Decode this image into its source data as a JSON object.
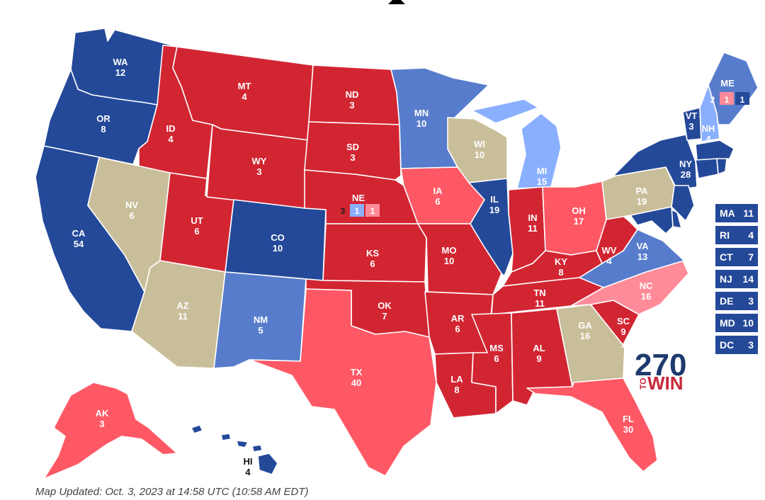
{
  "colors": {
    "safe_dem": "#244999",
    "likely_dem": "#577CCC",
    "lean_dem": "#8AAFFF",
    "tossup": "#C9BE9A",
    "lean_rep": "#FF8B98",
    "likely_rep": "#FF5865",
    "safe_rep": "#D22532"
  },
  "states": {
    "WA": {
      "abbr": "WA",
      "ev": "12",
      "rating": "safe_dem"
    },
    "OR": {
      "abbr": "OR",
      "ev": "8",
      "rating": "safe_dem"
    },
    "CA": {
      "abbr": "CA",
      "ev": "54",
      "rating": "safe_dem"
    },
    "ID": {
      "abbr": "ID",
      "ev": "4",
      "rating": "safe_rep"
    },
    "NV": {
      "abbr": "NV",
      "ev": "6",
      "rating": "tossup"
    },
    "AZ": {
      "abbr": "AZ",
      "ev": "11",
      "rating": "tossup"
    },
    "UT": {
      "abbr": "UT",
      "ev": "6",
      "rating": "safe_rep"
    },
    "MT": {
      "abbr": "MT",
      "ev": "4",
      "rating": "safe_rep"
    },
    "WY": {
      "abbr": "WY",
      "ev": "3",
      "rating": "safe_rep"
    },
    "CO": {
      "abbr": "CO",
      "ev": "10",
      "rating": "safe_dem"
    },
    "NM": {
      "abbr": "NM",
      "ev": "5",
      "rating": "likely_dem"
    },
    "ND": {
      "abbr": "ND",
      "ev": "3",
      "rating": "safe_rep"
    },
    "SD": {
      "abbr": "SD",
      "ev": "3",
      "rating": "safe_rep"
    },
    "NE": {
      "abbr": "NE",
      "ev": "3",
      "rating": "safe_rep"
    },
    "KS": {
      "abbr": "KS",
      "ev": "6",
      "rating": "safe_rep"
    },
    "OK": {
      "abbr": "OK",
      "ev": "7",
      "rating": "safe_rep"
    },
    "TX": {
      "abbr": "TX",
      "ev": "40",
      "rating": "likely_rep"
    },
    "MN": {
      "abbr": "MN",
      "ev": "10",
      "rating": "likely_dem"
    },
    "IA": {
      "abbr": "IA",
      "ev": "6",
      "rating": "likely_rep"
    },
    "MO": {
      "abbr": "MO",
      "ev": "10",
      "rating": "safe_rep"
    },
    "AR": {
      "abbr": "AR",
      "ev": "6",
      "rating": "safe_rep"
    },
    "LA": {
      "abbr": "LA",
      "ev": "8",
      "rating": "safe_rep"
    },
    "WI": {
      "abbr": "WI",
      "ev": "10",
      "rating": "tossup"
    },
    "IL": {
      "abbr": "IL",
      "ev": "19",
      "rating": "safe_dem"
    },
    "MI": {
      "abbr": "MI",
      "ev": "15",
      "rating": "lean_dem"
    },
    "IN": {
      "abbr": "IN",
      "ev": "11",
      "rating": "safe_rep"
    },
    "OH": {
      "abbr": "OH",
      "ev": "17",
      "rating": "likely_rep"
    },
    "KY": {
      "abbr": "KY",
      "ev": "8",
      "rating": "safe_rep"
    },
    "TN": {
      "abbr": "TN",
      "ev": "11",
      "rating": "safe_rep"
    },
    "MS": {
      "abbr": "MS",
      "ev": "6",
      "rating": "safe_rep"
    },
    "AL": {
      "abbr": "AL",
      "ev": "9",
      "rating": "safe_rep"
    },
    "GA": {
      "abbr": "GA",
      "ev": "16",
      "rating": "tossup"
    },
    "FL": {
      "abbr": "FL",
      "ev": "30",
      "rating": "likely_rep"
    },
    "SC": {
      "abbr": "SC",
      "ev": "9",
      "rating": "safe_rep"
    },
    "NC": {
      "abbr": "NC",
      "ev": "16",
      "rating": "lean_rep"
    },
    "VA": {
      "abbr": "VA",
      "ev": "13",
      "rating": "likely_dem"
    },
    "WV": {
      "abbr": "WV",
      "ev": "4",
      "rating": "safe_rep"
    },
    "PA": {
      "abbr": "PA",
      "ev": "19",
      "rating": "tossup"
    },
    "NY": {
      "abbr": "NY",
      "ev": "28",
      "rating": "safe_dem"
    },
    "VT": {
      "abbr": "VT",
      "ev": "3",
      "rating": "safe_dem"
    },
    "NH": {
      "abbr": "NH",
      "ev": "4",
      "rating": "lean_dem"
    },
    "ME": {
      "abbr": "ME",
      "ev": "",
      "rating": "likely_dem"
    },
    "MA": {
      "abbr": "MA",
      "ev": "11",
      "rating": "safe_dem"
    },
    "RI": {
      "abbr": "RI",
      "ev": "4",
      "rating": "safe_dem"
    },
    "CT": {
      "abbr": "CT",
      "ev": "7",
      "rating": "safe_dem"
    },
    "NJ": {
      "abbr": "NJ",
      "ev": "14",
      "rating": "safe_dem"
    },
    "DE": {
      "abbr": "DE",
      "ev": "3",
      "rating": "safe_dem"
    },
    "MD": {
      "abbr": "MD",
      "ev": "10",
      "rating": "safe_dem"
    },
    "DC": {
      "abbr": "DC",
      "ev": "3",
      "rating": "safe_dem"
    },
    "AK": {
      "abbr": "AK",
      "ev": "3",
      "rating": "likely_rep"
    },
    "HI": {
      "abbr": "HI",
      "ev": "4",
      "rating": "safe_dem"
    }
  },
  "districts": {
    "NE": {
      "statewide": "3",
      "d1": {
        "ev": "1",
        "rating": "lean_dem"
      },
      "d2": {
        "ev": "1",
        "rating": "lean_rep"
      }
    },
    "ME": {
      "statewide": "2",
      "d1": {
        "ev": "1",
        "rating": "lean_rep"
      },
      "d2": {
        "ev": "1",
        "rating": "safe_dem"
      }
    }
  },
  "small_states": [
    "MA",
    "RI",
    "CT",
    "NJ",
    "DE",
    "MD",
    "DC"
  ],
  "logo": {
    "number": "270",
    "to": "TO",
    "win": "WIN"
  },
  "footer": "Map Updated: Oct. 3, 2023 at 14:58 UTC (10:58 AM EDT)"
}
